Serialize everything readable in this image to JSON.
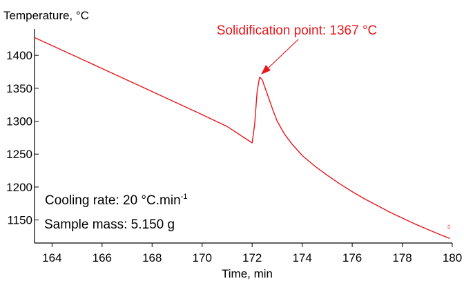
{
  "chart_data": {
    "type": "line",
    "xlabel": "Time, min",
    "ylabel": "Temperature, °C",
    "xlim": [
      163.3,
      180.0
    ],
    "ylim": [
      1115,
      1440
    ],
    "xticks": [
      164,
      166,
      168,
      170,
      172,
      174,
      176,
      178,
      180
    ],
    "yticks": [
      1150,
      1200,
      1250,
      1300,
      1350,
      1400
    ],
    "grid": false,
    "line_color": "#e8161b",
    "series": [
      {
        "x": [
          163.3,
          166,
          168,
          170,
          171.0,
          172.0,
          172.1,
          172.2,
          172.3,
          172.4,
          172.6,
          172.8,
          173.0,
          173.3,
          173.6,
          174.0,
          174.5,
          175.0,
          175.5,
          176.0,
          176.5,
          177.0,
          177.5,
          178.0,
          178.5,
          179.0,
          179.5,
          179.9
        ],
        "y": [
          1427,
          1380,
          1345,
          1310,
          1292,
          1267,
          1295,
          1345,
          1367,
          1363,
          1342,
          1320,
          1300,
          1280,
          1265,
          1248,
          1232,
          1218,
          1205,
          1193,
          1182,
          1172,
          1162,
          1153,
          1144,
          1136,
          1128,
          1122
        ]
      }
    ],
    "annotations": {
      "solidification": {
        "label": "Solidification point: 1367 °C",
        "x": 172.3,
        "y": 1367
      },
      "cooling_rate": {
        "text": "Cooling rate: 20 °C.min",
        "superscript": "-1"
      },
      "sample_mass": "Sample mass: 5.150 g"
    }
  }
}
